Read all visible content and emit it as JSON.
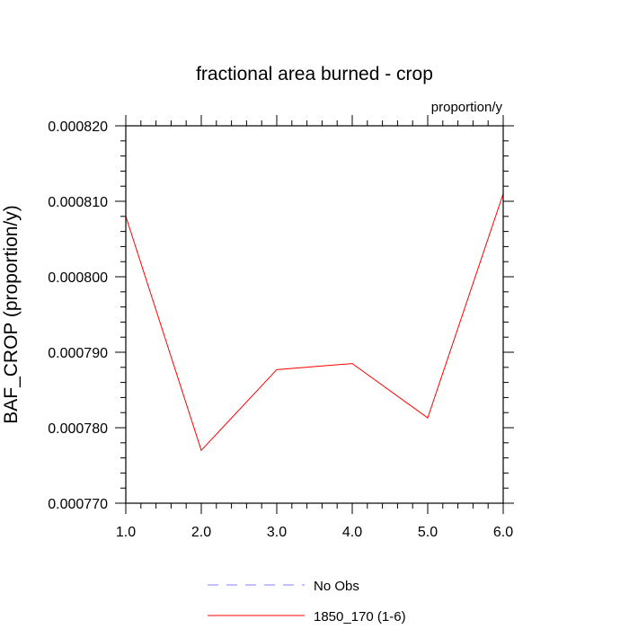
{
  "chart_data": {
    "type": "line",
    "title": "fractional area burned - crop",
    "units_label": "proportion/y",
    "xlabel": "",
    "ylabel": "BAF_CROP  (proportion/y)",
    "xlim": [
      1.0,
      6.0
    ],
    "ylim": [
      0.00077,
      0.00082
    ],
    "x_ticks": [
      "1.0",
      "2.0",
      "3.0",
      "4.0",
      "5.0",
      "6.0"
    ],
    "y_ticks": [
      "0.000770",
      "0.000780",
      "0.000790",
      "0.000800",
      "0.000810",
      "0.000820"
    ],
    "grid": false,
    "legend_placement": "bottom",
    "series": [
      {
        "name": "No Obs",
        "color": "#8080ff",
        "dash": "dashed",
        "x": [],
        "values": []
      },
      {
        "name": "1850_170 (1-6)",
        "color": "#ff0000",
        "dash": "solid",
        "x": [
          1,
          2,
          3,
          4,
          5,
          6
        ],
        "values": [
          0.000808,
          0.000777,
          0.0007877,
          0.0007885,
          0.0007813,
          0.000811
        ]
      }
    ]
  }
}
